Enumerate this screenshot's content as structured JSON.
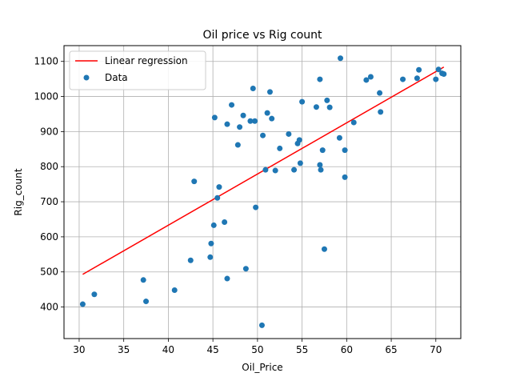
{
  "chart_data": {
    "type": "scatter",
    "title": "Oil price vs Rig count",
    "xlabel": "Oil_Price",
    "ylabel": "Rig_count",
    "xlim": [
      28.3,
      72.8
    ],
    "ylim": [
      310,
      1145
    ],
    "xticks": [
      30,
      35,
      40,
      45,
      50,
      55,
      60,
      65,
      70
    ],
    "yticks": [
      400,
      500,
      600,
      700,
      800,
      900,
      1000,
      1100
    ],
    "grid": true,
    "legend_position": "top-left",
    "legend": [
      "Linear regression",
      "Data"
    ],
    "colors": {
      "regression": "#ff0000",
      "points": "#1f77b4",
      "grid": "#b0b0b0"
    },
    "regression": {
      "name": "Linear regression",
      "x": [
        30.4,
        70.9
      ],
      "y": [
        493,
        1084
      ]
    },
    "series": [
      {
        "name": "Data",
        "points": [
          [
            30.4,
            408
          ],
          [
            31.7,
            436
          ],
          [
            37.2,
            477
          ],
          [
            37.5,
            416
          ],
          [
            40.7,
            448
          ],
          [
            42.5,
            533
          ],
          [
            42.9,
            758
          ],
          [
            44.7,
            542
          ],
          [
            44.8,
            581
          ],
          [
            45.1,
            633
          ],
          [
            45.2,
            940
          ],
          [
            45.5,
            711
          ],
          [
            45.7,
            742
          ],
          [
            46.3,
            642
          ],
          [
            46.6,
            481
          ],
          [
            46.6,
            921
          ],
          [
            47.1,
            976
          ],
          [
            47.8,
            862
          ],
          [
            48.0,
            913
          ],
          [
            48.4,
            946
          ],
          [
            48.7,
            509
          ],
          [
            49.2,
            930
          ],
          [
            49.5,
            1023
          ],
          [
            49.7,
            930
          ],
          [
            49.8,
            684
          ],
          [
            50.5,
            348
          ],
          [
            50.6,
            889
          ],
          [
            50.9,
            791
          ],
          [
            51.1,
            953
          ],
          [
            51.4,
            1013
          ],
          [
            51.6,
            937
          ],
          [
            52.0,
            789
          ],
          [
            52.5,
            852
          ],
          [
            53.5,
            893
          ],
          [
            54.1,
            791
          ],
          [
            54.5,
            866
          ],
          [
            54.7,
            876
          ],
          [
            54.8,
            810
          ],
          [
            55.0,
            985
          ],
          [
            56.6,
            970
          ],
          [
            57.0,
            1049
          ],
          [
            57.0,
            805
          ],
          [
            57.1,
            791
          ],
          [
            57.3,
            847
          ],
          [
            57.5,
            565
          ],
          [
            57.8,
            989
          ],
          [
            58.1,
            969
          ],
          [
            59.2,
            882
          ],
          [
            59.3,
            1109
          ],
          [
            59.8,
            770
          ],
          [
            59.8,
            847
          ],
          [
            60.8,
            926
          ],
          [
            62.2,
            1047
          ],
          [
            62.7,
            1056
          ],
          [
            63.7,
            1010
          ],
          [
            63.8,
            956
          ],
          [
            66.3,
            1049
          ],
          [
            67.9,
            1052
          ],
          [
            68.1,
            1076
          ],
          [
            70.0,
            1049
          ],
          [
            70.3,
            1077
          ],
          [
            70.7,
            1066
          ],
          [
            70.9,
            1064
          ]
        ]
      }
    ]
  }
}
